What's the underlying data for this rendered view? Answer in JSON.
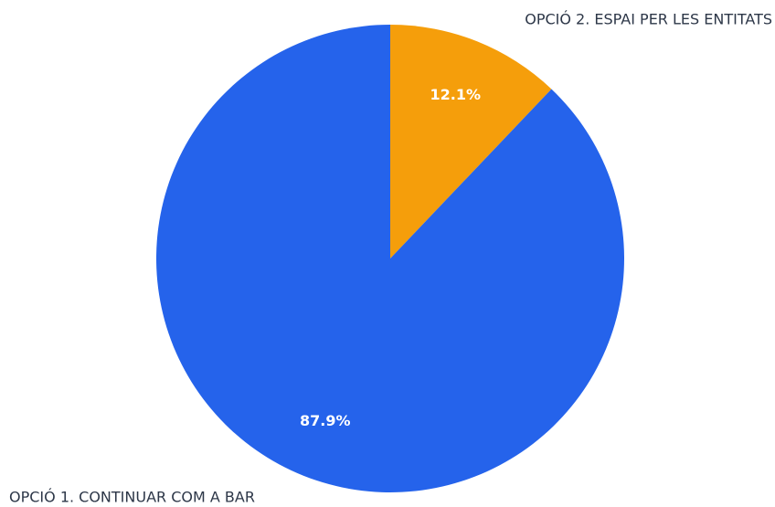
{
  "chart_data": {
    "type": "pie",
    "categories": [
      "OPCIÓ 2. ESPAI PER LES ENTITATS",
      "OPCIÓ 1. CONTINUAR COM A BAR"
    ],
    "values": [
      12.1,
      87.9
    ],
    "value_labels": [
      "12.1%",
      "87.9%"
    ],
    "colors": [
      "#f59e0b",
      "#2563eb"
    ]
  }
}
